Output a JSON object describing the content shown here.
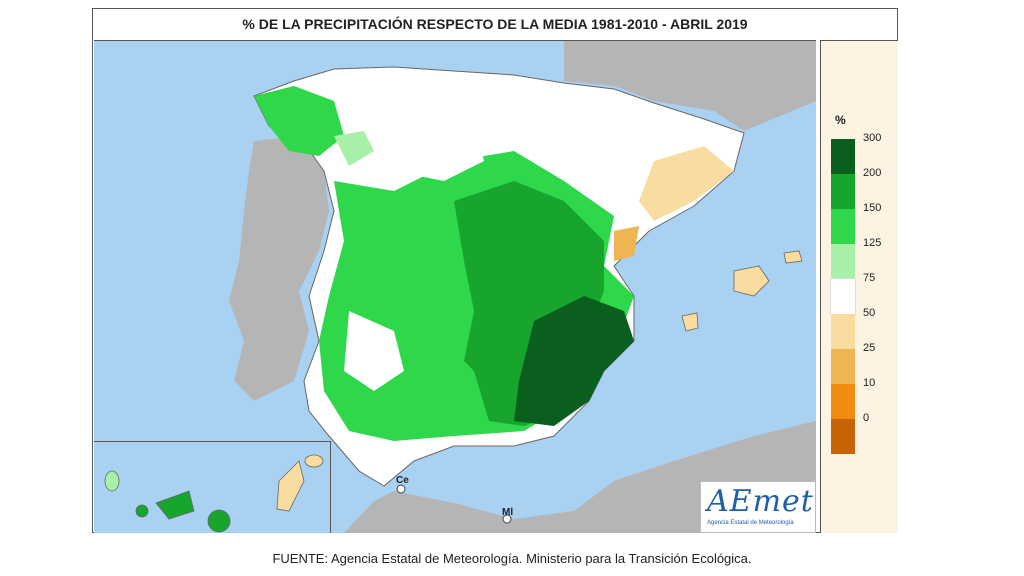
{
  "title": "% DE LA PRECIPITACIÓN RESPECTO DE LA MEDIA 1981-2010 - ABRIL 2019",
  "legend": {
    "unit": "%",
    "ticks": [
      "300",
      "200",
      "150",
      "125",
      "75",
      "50",
      "25",
      "10",
      "0"
    ],
    "colors": [
      "#0a5e1e",
      "#17a52e",
      "#2ed84a",
      "#a8f0a8",
      "#ffffff",
      "#f8dca0",
      "#efb552",
      "#f08c10",
      "#c86408"
    ]
  },
  "map_labels": {
    "ceuta": "Ce",
    "melilla": "Ml"
  },
  "logo": {
    "name": "AEmet",
    "subtitle": "Agencia Estatal de Meteorología"
  },
  "footer": "FUENTE: Agencia Estatal de Meteorología. Ministerio para la Transición Ecológica."
}
